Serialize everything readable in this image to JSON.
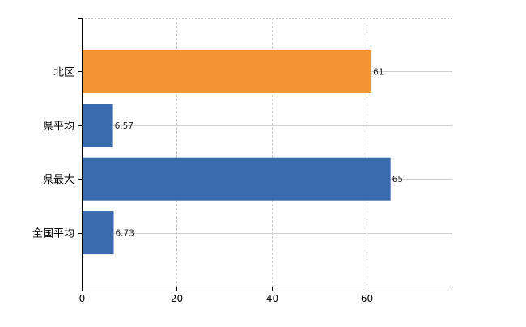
{
  "chart_data": {
    "type": "bar",
    "orientation": "horizontal",
    "categories": [
      "北区",
      "県平均",
      "県最大",
      "全国平均"
    ],
    "values": [
      61,
      6.57,
      65,
      6.73
    ],
    "value_labels": [
      "61",
      "6.57",
      "65",
      "6.73"
    ],
    "bar_colors": [
      "#f39332",
      "#3a6bae",
      "#3a6bae",
      "#3a6bae"
    ],
    "xlim": [
      0,
      78
    ],
    "xticks": [
      0,
      20,
      40,
      60
    ],
    "xtick_labels": [
      "0",
      "20",
      "40",
      "60"
    ],
    "title": "",
    "xlabel": "",
    "ylabel": "",
    "grid": true
  }
}
